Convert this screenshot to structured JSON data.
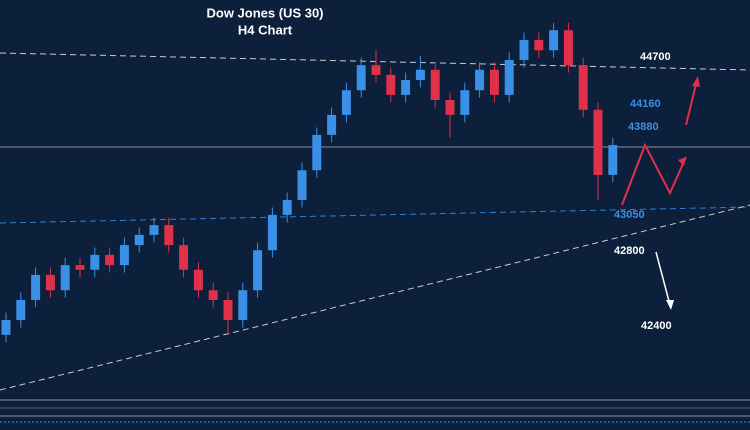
{
  "chart_data": {
    "type": "candlestick",
    "title": "Dow Jones (US 30)",
    "subtitle": "H4 Chart",
    "ylim": [
      41000,
      45300
    ],
    "up_color": "#3a8fe6",
    "down_color": "#e0304a",
    "open": [
      41700,
      41860,
      42075,
      42345,
      42180,
      42450,
      42400,
      42560,
      42450,
      42665,
      42775,
      42880,
      42665,
      42400,
      42180,
      42075,
      41860,
      42180,
      42610,
      42990,
      43150,
      43470,
      43850,
      44065,
      44330,
      44600,
      44495,
      44280,
      44440,
      44550,
      44225,
      44065,
      44330,
      44550,
      44280,
      44655,
      44870,
      44760,
      44975,
      44600,
      44120,
      43420
    ],
    "high": [
      41940,
      42155,
      42425,
      42425,
      42530,
      42530,
      42640,
      42640,
      42745,
      42855,
      42960,
      42960,
      42745,
      42480,
      42260,
      42155,
      42260,
      42690,
      43070,
      43230,
      43550,
      43930,
      44145,
      44410,
      44680,
      44760,
      44575,
      44520,
      44700,
      44630,
      44305,
      44410,
      44630,
      44630,
      44735,
      44950,
      44950,
      45055,
      45055,
      44680,
      44200,
      43820
    ],
    "low": [
      41620,
      41780,
      41995,
      42100,
      42100,
      42320,
      42320,
      42370,
      42370,
      42585,
      42695,
      42585,
      42320,
      42100,
      41995,
      41700,
      41780,
      42100,
      42530,
      42910,
      43070,
      43390,
      43770,
      43985,
      44250,
      44415,
      44200,
      44200,
      44360,
      44145,
      43820,
      43985,
      44250,
      44200,
      44200,
      44575,
      44680,
      44680,
      44520,
      44040,
      43150,
      43340
    ],
    "close": [
      41860,
      42075,
      42345,
      42180,
      42450,
      42400,
      42560,
      42450,
      42665,
      42775,
      42880,
      42665,
      42400,
      42180,
      42075,
      41860,
      42180,
      42610,
      42990,
      43150,
      43470,
      43850,
      44065,
      44330,
      44600,
      44495,
      44280,
      44440,
      44550,
      44225,
      44065,
      44330,
      44550,
      44280,
      44655,
      44870,
      44760,
      44975,
      44600,
      44120,
      43420,
      43740
    ],
    "levels": [
      {
        "value": 44700,
        "color": "#ffffff"
      },
      {
        "value": 44160,
        "color": "#3a8fe6"
      },
      {
        "value": 43880,
        "color": "#3a8fe6"
      },
      {
        "value": 43050,
        "color": "#3a8fe6"
      },
      {
        "value": 42800,
        "color": "#ffffff"
      },
      {
        "value": 42400,
        "color": "#ffffff"
      }
    ]
  }
}
